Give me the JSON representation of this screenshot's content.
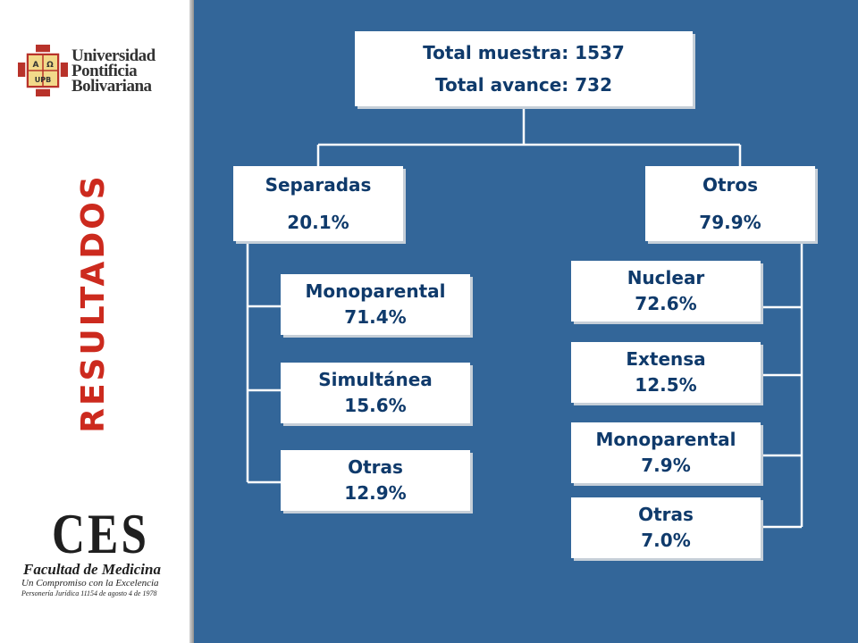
{
  "logos": {
    "upb": {
      "lines": [
        "Universidad",
        "Pontificia",
        "Bolivariana"
      ],
      "shield_text": {
        "top_left": "A",
        "top_right": "Ω",
        "bottom": "UPB"
      }
    },
    "ces": {
      "mark": "CES",
      "line1": "Facultad de Medicina",
      "line2": "Un Compromiso con la Excelencia",
      "line3": "Personería Jurídica 11154 de agosto 4 de 1978"
    }
  },
  "sidebar": {
    "title": "RESULTADOS"
  },
  "diagram": {
    "root": {
      "line1": "Total muestra: 1537",
      "line2": "Total avance: 732"
    },
    "branches": [
      {
        "name": "Separadas",
        "value": "20.1%",
        "children": [
          {
            "name": "Monoparental",
            "value": "71.4%"
          },
          {
            "name": "Simultánea",
            "value": "15.6%"
          },
          {
            "name": "Otras",
            "value": "12.9%"
          }
        ]
      },
      {
        "name": "Otros",
        "value": "79.9%",
        "children": [
          {
            "name": "Nuclear",
            "value": "72.6%"
          },
          {
            "name": "Extensa",
            "value": "12.5%"
          },
          {
            "name": "Monoparental",
            "value": "7.9%"
          },
          {
            "name": "Otras",
            "value": "7.0%"
          }
        ]
      }
    ]
  },
  "colors": {
    "panel": "#336699",
    "node_text": "#0f3a6b",
    "title": "#cc2a1e",
    "connector": "#ffffff"
  }
}
